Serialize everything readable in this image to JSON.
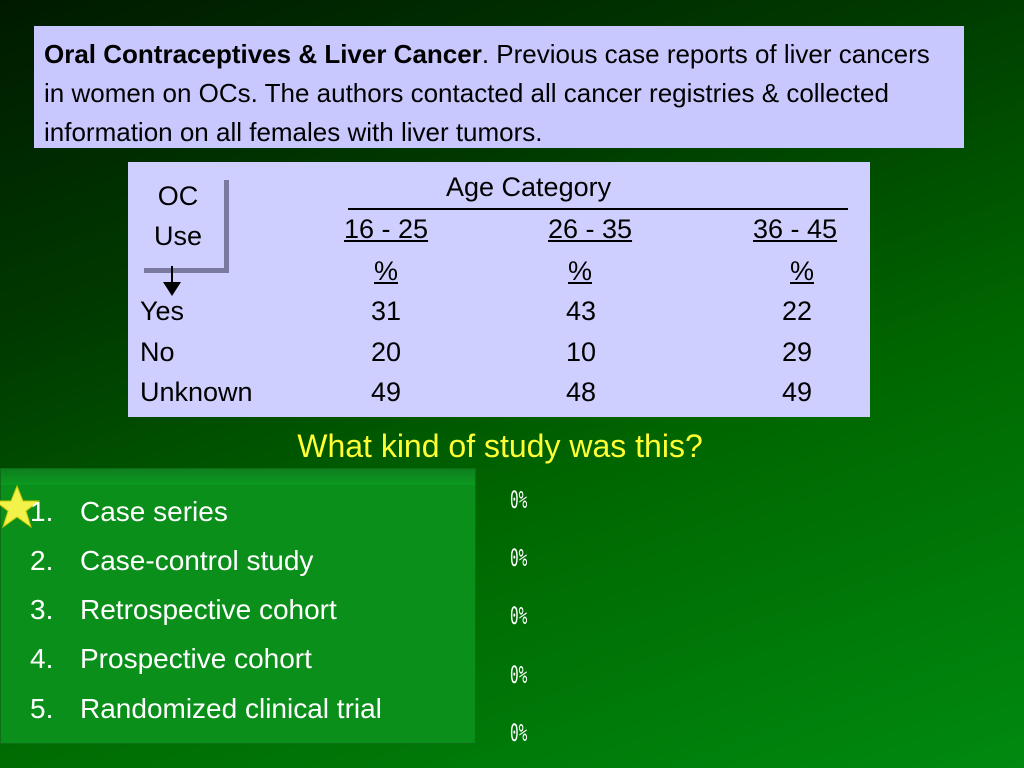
{
  "intro": {
    "bold": "Oral Contraceptives & Liver Cancer",
    "text": ". Previous case reports of liver cancers in women on OCs. The authors contacted all cancer registries & collected information on all females with liver tumors."
  },
  "table": {
    "oc_label_1": "OC",
    "oc_label_2": "Use",
    "age_header": "Age Category",
    "columns": [
      "16 - 25",
      "26 - 35",
      "36 - 45"
    ],
    "unit": "%",
    "rows": [
      {
        "label": "Yes",
        "values": [
          "31",
          "43",
          "22"
        ]
      },
      {
        "label": "No",
        "values": [
          "20",
          "10",
          "29"
        ]
      },
      {
        "label": "Unknown",
        "values": [
          "49",
          "48",
          "49"
        ]
      }
    ]
  },
  "question": "What kind of study was this?",
  "answers": [
    {
      "num": "1.",
      "label": "Case series",
      "pct": "0%"
    },
    {
      "num": "2.",
      "label": "Case-control study",
      "pct": "0%"
    },
    {
      "num": "3.",
      "label": "Retrospective cohort",
      "pct": "0%"
    },
    {
      "num": "4.",
      "label": "Prospective cohort",
      "pct": "0%"
    },
    {
      "num": "5.",
      "label": "Randomized clinical trial",
      "pct": "0%"
    }
  ],
  "colors": {
    "star": "#f2f24a",
    "question": "#ffff33",
    "box": "#c8c8ff"
  },
  "icons": {
    "correct_marker": "star-icon",
    "arrow": "down-arrow-icon"
  }
}
